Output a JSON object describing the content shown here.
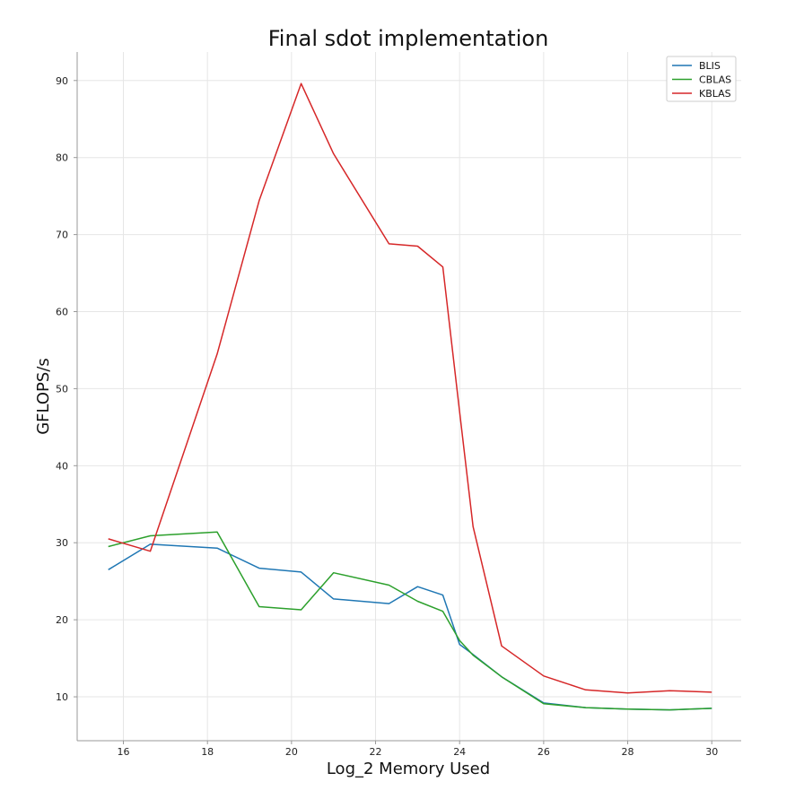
{
  "chart_data": {
    "type": "line",
    "title": "Final sdot implementation",
    "xlabel": "Log_2 Memory Used",
    "ylabel": "GFLOPS/s",
    "xlim": [
      14.9,
      30.7
    ],
    "ylim": [
      4.3,
      93.7
    ],
    "xticks": [
      16,
      18,
      20,
      22,
      24,
      26,
      28,
      30
    ],
    "yticks": [
      10,
      20,
      30,
      40,
      50,
      60,
      70,
      80,
      90
    ],
    "grid": true,
    "legend_position": "top-right",
    "x": [
      15.64,
      16.64,
      18.23,
      19.23,
      20.23,
      21.0,
      22.32,
      23.0,
      23.6,
      24.0,
      24.32,
      25.0,
      26.0,
      27.0,
      28.0,
      29.0,
      30.0
    ],
    "series": [
      {
        "name": "BLIS",
        "color": "#1f77b4",
        "values": [
          26.5,
          29.8,
          29.3,
          26.7,
          26.2,
          22.7,
          22.1,
          24.3,
          23.2,
          16.8,
          15.5,
          12.6,
          9.2,
          8.6,
          8.4,
          8.3,
          8.5
        ]
      },
      {
        "name": "CBLAS",
        "color": "#2ca02c",
        "values": [
          29.5,
          30.9,
          31.4,
          21.7,
          21.3,
          26.1,
          24.5,
          22.4,
          21.1,
          17.3,
          15.4,
          12.6,
          9.1,
          8.6,
          8.4,
          8.3,
          8.5
        ]
      },
      {
        "name": "KBLAS",
        "color": "#d62728",
        "values": [
          30.5,
          28.9,
          54.5,
          74.4,
          89.6,
          80.5,
          68.8,
          68.5,
          65.8,
          47.0,
          32.1,
          16.6,
          12.7,
          10.9,
          10.5,
          10.8,
          10.6
        ]
      }
    ]
  }
}
